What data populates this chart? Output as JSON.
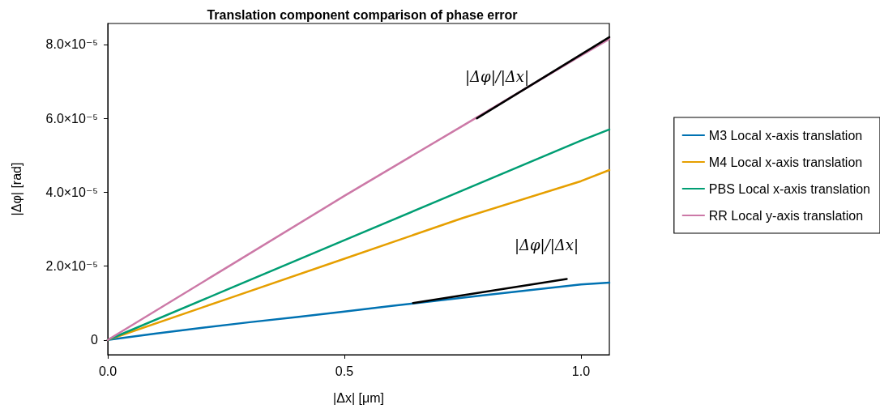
{
  "chart_data": {
    "type": "line",
    "title": "Translation component comparison of phase error",
    "xlabel": "|Δx| [μm]",
    "ylabel": "|Δφ| [rad]",
    "xlim": [
      0,
      1.06
    ],
    "xticks": [
      {
        "value": 0,
        "label": "0.0"
      },
      {
        "value": 0.5,
        "label": "0.5"
      },
      {
        "value": 1,
        "label": "1.0"
      }
    ],
    "ylim": [
      -4e-06,
      8.57e-05
    ],
    "yticks": [
      0,
      {
        "value": 2e-05,
        "label": "2.0×10⁻⁵"
      },
      {
        "value": 4e-05,
        "label": "4.0×10⁻⁵"
      },
      {
        "value": 6e-05,
        "label": "6.0×10⁻⁵"
      },
      {
        "value": 8e-05,
        "label": "8.0×10⁻⁵"
      }
    ],
    "legend": "right",
    "marker": "none",
    "line_style": "solid",
    "series": [
      {
        "name": "M3 Local x-axis translation",
        "color": "#0072b2",
        "x": [
          0,
          0.1,
          0.2,
          0.3,
          0.4,
          0.5,
          0.6,
          0.7,
          0.8,
          0.9,
          1.0,
          1.06
        ],
        "values": [
          0,
          1.7e-06,
          3.3e-06,
          4.8e-06,
          6.2e-06,
          7.7e-06,
          9.2e-06,
          1.07e-05,
          1.22e-05,
          1.36e-05,
          1.5e-05,
          1.55e-05
        ]
      },
      {
        "name": "M4 Local x-axis translation",
        "color": "#e69f00",
        "x": [
          0,
          0.25,
          0.5,
          0.75,
          1.0,
          1.06
        ],
        "values": [
          0,
          1.1e-05,
          2.2e-05,
          3.3e-05,
          4.3e-05,
          4.6e-05
        ]
      },
      {
        "name": "PBS Local x-axis translation",
        "color": "#009e73",
        "x": [
          0,
          0.25,
          0.5,
          0.75,
          1.0,
          1.06
        ],
        "values": [
          0,
          1.35e-05,
          2.7e-05,
          4.05e-05,
          5.4e-05,
          5.7e-05
        ]
      },
      {
        "name": "RR Local y-axis translation",
        "color": "#cc79a7",
        "x": [
          0,
          0.25,
          0.5,
          0.75,
          1.0,
          1.06
        ],
        "values": [
          0,
          1.95e-05,
          3.9e-05,
          5.8e-05,
          7.7e-05,
          8.15e-05
        ]
      },
      {
        "color": "#000000",
        "x": [
          0.78,
          1.06
        ],
        "values": [
          6e-05,
          8.2e-05
        ]
      },
      {
        "color": "#000000",
        "x": [
          0.645,
          0.97
        ],
        "values": [
          1e-05,
          1.65e-05
        ]
      }
    ],
    "annotations": [
      "|Δφ|/|Δx|",
      "|Δφ|/|Δx|"
    ]
  }
}
